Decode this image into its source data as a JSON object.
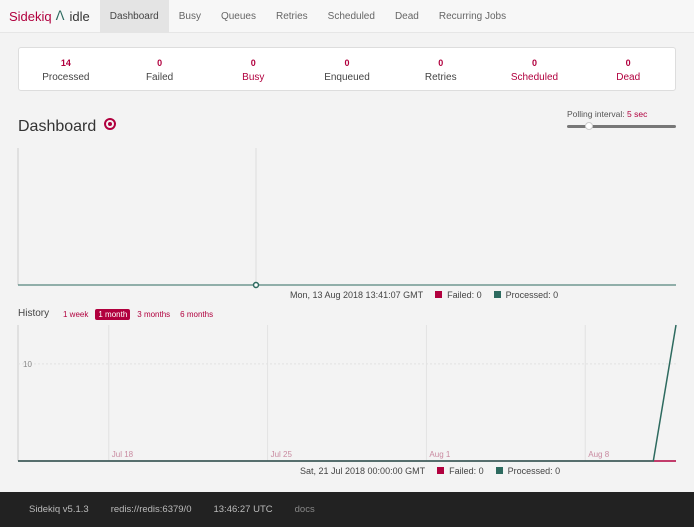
{
  "nav": {
    "brand": "Sidekiq",
    "status": "idle",
    "tabs": [
      "Dashboard",
      "Busy",
      "Queues",
      "Retries",
      "Scheduled",
      "Dead",
      "Recurring Jobs"
    ],
    "active": "Dashboard"
  },
  "summary": [
    {
      "value": "14",
      "label": "Processed"
    },
    {
      "value": "0",
      "label": "Failed"
    },
    {
      "value": "0",
      "label": "Busy"
    },
    {
      "value": "0",
      "label": "Enqueued"
    },
    {
      "value": "0",
      "label": "Retries"
    },
    {
      "value": "0",
      "label": "Scheduled"
    },
    {
      "value": "0",
      "label": "Dead"
    }
  ],
  "dashboard": {
    "title": "Dashboard",
    "polling_label": "Polling interval:",
    "polling_value": "5 sec",
    "polling_fraction": 0.2
  },
  "realtime": {
    "timestamp": "Mon, 13 Aug 2018 13:41:07 GMT",
    "failed": "Failed: 0",
    "processed": "Processed: 0"
  },
  "history": {
    "title": "History",
    "ranges": [
      "1 week",
      "1 month",
      "3 months",
      "6 months"
    ],
    "active_range": "1 month",
    "timestamp": "Sat, 21 Jul 2018 00:00:00 GMT",
    "failed": "Failed: 0",
    "processed": "Processed: 0"
  },
  "chart_data": [
    {
      "type": "line",
      "title": "",
      "series": [
        {
          "name": "Failed",
          "color": "#b1003e",
          "values": [
            0
          ]
        },
        {
          "name": "Processed",
          "color": "#2d6a5f",
          "values": [
            0
          ]
        }
      ]
    },
    {
      "type": "line",
      "title": "History",
      "x_ticks": [
        "Jul 18",
        "Jul 25",
        "Aug 1",
        "Aug 8"
      ],
      "y_ticks": [
        "10"
      ],
      "x_range": [
        "2018-07-14",
        "2018-08-12"
      ],
      "y_range": [
        0,
        14
      ],
      "series": [
        {
          "name": "Failed",
          "color": "#b1003e",
          "x": [
            "2018-07-14",
            "2018-08-12"
          ],
          "y": [
            0,
            0
          ]
        },
        {
          "name": "Processed",
          "color": "#2d6a5f",
          "x": [
            "2018-07-14",
            "2018-08-11",
            "2018-08-12"
          ],
          "y": [
            0,
            0,
            14
          ]
        }
      ]
    }
  ],
  "footer": {
    "version": "Sidekiq v5.1.3",
    "redis": "redis://redis:6379/0",
    "time": "13:46:27 UTC",
    "docs": "docs"
  }
}
